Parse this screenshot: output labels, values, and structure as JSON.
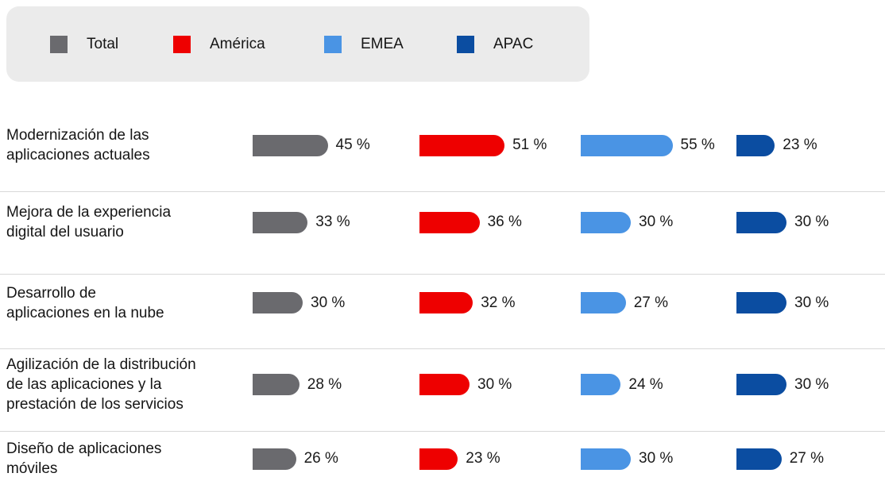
{
  "legend": {
    "items": [
      {
        "label": "Total",
        "color": "#6a6a6e"
      },
      {
        "label": "América",
        "color": "#ee0000"
      },
      {
        "label": "EMEA",
        "color": "#4a94e4"
      },
      {
        "label": "APAC",
        "color": "#0b4da1"
      }
    ]
  },
  "chart_data": {
    "type": "bar",
    "orientation": "horizontal",
    "unit": "%",
    "grid": false,
    "legend_position": "top",
    "xlim": [
      0,
      60
    ],
    "categories": [
      "Modernización de las\naplicaciones actuales",
      "Mejora de la experiencia\ndigital del usuario",
      "Desarrollo de\naplicaciones en la nube",
      "Agilización de la distribución\nde las aplicaciones y la\nprestación de los servicios",
      "Diseño de aplicaciones\nmóviles"
    ],
    "series": [
      {
        "name": "Total",
        "color": "#6a6a6e",
        "values": [
          45,
          33,
          30,
          28,
          26
        ]
      },
      {
        "name": "América",
        "color": "#ee0000",
        "values": [
          51,
          36,
          32,
          30,
          23
        ]
      },
      {
        "name": "EMEA",
        "color": "#4a94e4",
        "values": [
          55,
          30,
          27,
          24,
          30
        ]
      },
      {
        "name": "APAC",
        "color": "#0b4da1",
        "values": [
          23,
          30,
          30,
          30,
          27
        ]
      }
    ],
    "value_labels": [
      [
        "45 %",
        "51 %",
        "55 %",
        "23 %"
      ],
      [
        "33 %",
        "36 %",
        "30 %",
        "30 %"
      ],
      [
        "30 %",
        "32 %",
        "27 %",
        "30 %"
      ],
      [
        "28 %",
        "30 %",
        "24 %",
        "30 %"
      ],
      [
        "26 %",
        "23 %",
        "30 %",
        "27 %"
      ]
    ]
  }
}
